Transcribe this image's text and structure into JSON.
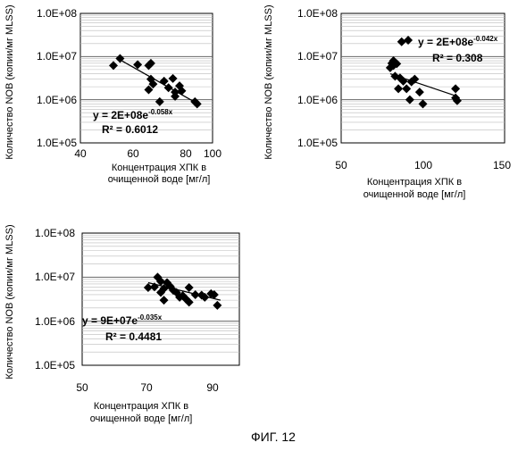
{
  "figure_label": "ФИГ. 12",
  "chart_data": [
    {
      "type": "scatter",
      "xlabel_line1": "Концентрация ХПК в",
      "xlabel_line2": "очищенной воде [мг/л]",
      "ylabel": "Количество NOB (копии/мг MLSS)",
      "xlim": [
        40,
        100
      ],
      "x_ticks": [
        40,
        60,
        80,
        100
      ],
      "ylim": [
        100000,
        100000000
      ],
      "y_scale": "log",
      "y_ticks": [
        "1.0E+05",
        "1.0E+06",
        "1.0E+07",
        "1.0E+08"
      ],
      "grid": "horizontal",
      "equation_base": "y = 2E+08e",
      "equation_exp": "-0.058x",
      "r2_text": "R² = 0.6012",
      "points": [
        [
          55,
          6200000
        ],
        [
          58,
          9000000
        ],
        [
          66,
          6500000
        ],
        [
          71,
          6200000
        ],
        [
          71,
          1700000
        ],
        [
          72,
          7000000
        ],
        [
          72,
          3000000
        ],
        [
          73,
          2300000
        ],
        [
          76,
          900000
        ],
        [
          78,
          2700000
        ],
        [
          80,
          1900000
        ],
        [
          82,
          3100000
        ],
        [
          83,
          1200000
        ],
        [
          83,
          1500000
        ],
        [
          85,
          2100000
        ],
        [
          86,
          1600000
        ],
        [
          92,
          900000
        ],
        [
          93,
          800000
        ]
      ],
      "trend": [
        [
          57,
          9000000
        ],
        [
          93,
          820000
        ]
      ]
    },
    {
      "type": "scatter",
      "xlabel_line1": "Концентрация ХПК в",
      "xlabel_line2": "очищенной воде [мг/л]",
      "ylabel": "Количество NOB (копии/мг MLSS)",
      "xlim": [
        50,
        150
      ],
      "x_ticks": [
        50,
        100,
        150
      ],
      "ylim": [
        100000,
        100000000
      ],
      "y_scale": "log",
      "y_ticks": [
        "1.0E+05",
        "1.0E+06",
        "1.0E+07",
        "1.0E+08"
      ],
      "grid": "horizontal",
      "equation_base": "y = 2E+08e",
      "equation_exp": "-0.042x",
      "r2_text": "R² = 0.308",
      "points": [
        [
          80,
          5500000
        ],
        [
          81,
          7000000
        ],
        [
          82,
          8000000
        ],
        [
          82,
          6200000
        ],
        [
          83,
          3500000
        ],
        [
          84,
          6800000
        ],
        [
          85,
          1800000
        ],
        [
          86,
          3200000
        ],
        [
          87,
          22000000
        ],
        [
          88,
          2700000
        ],
        [
          90,
          1800000
        ],
        [
          91,
          24000000
        ],
        [
          92,
          1000000
        ],
        [
          93,
          2600000
        ],
        [
          95,
          3000000
        ],
        [
          98,
          1500000
        ],
        [
          100,
          800000
        ],
        [
          120,
          1800000
        ],
        [
          120,
          1100000
        ],
        [
          121,
          950000
        ]
      ],
      "trend": [
        [
          80,
          4000000
        ],
        [
          121,
          1200000
        ]
      ]
    },
    {
      "type": "scatter",
      "xlabel_line1": "Концентрация ХПК в",
      "xlabel_line2": "очищенной воде [мг/л]",
      "ylabel": "Количество NOB (копии/мг MLSS)",
      "xlim": [
        50,
        100
      ],
      "x_ticks": [
        50,
        70,
        90
      ],
      "ylim": [
        100000,
        100000000
      ],
      "y_scale": "log",
      "y_ticks": [
        "1.0E+05",
        "1.0E+06",
        "1.0E+07",
        "1.0E+08"
      ],
      "grid": "horizontal",
      "equation_base": "y = 9E+07e",
      "equation_exp": "-0.035x",
      "r2_text": "R² = 0.4481",
      "points": [
        [
          71,
          5800000
        ],
        [
          73,
          6000000
        ],
        [
          74,
          10000000
        ],
        [
          75,
          8000000
        ],
        [
          75,
          4500000
        ],
        [
          76,
          5500000
        ],
        [
          76,
          3000000
        ],
        [
          77,
          7500000
        ],
        [
          78,
          6200000
        ],
        [
          79,
          5000000
        ],
        [
          80,
          4500000
        ],
        [
          81,
          3500000
        ],
        [
          82,
          3800000
        ],
        [
          83,
          3200000
        ],
        [
          84,
          5800000
        ],
        [
          84,
          2700000
        ],
        [
          86,
          4000000
        ],
        [
          88,
          3900000
        ],
        [
          89,
          3500000
        ],
        [
          91,
          4200000
        ],
        [
          92,
          4000000
        ],
        [
          93,
          2300000
        ]
      ],
      "trend": [
        [
          71,
          7500000
        ],
        [
          94,
          3000000
        ]
      ]
    }
  ]
}
